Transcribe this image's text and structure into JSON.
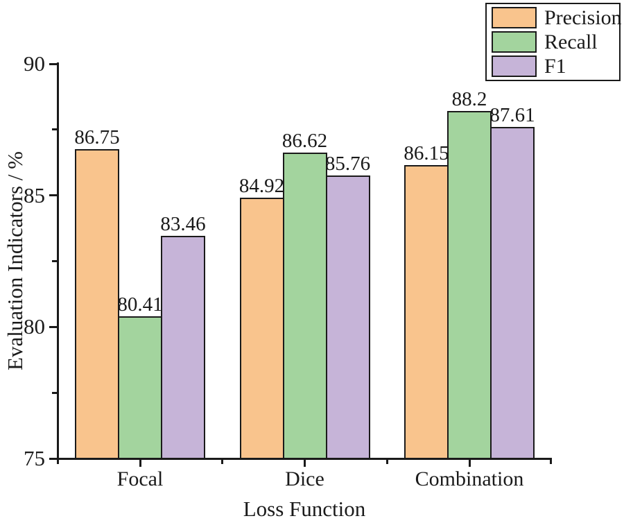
{
  "figure": {
    "background": "#ffffff",
    "ink_color": "#1a1a1a"
  },
  "chart_data": {
    "type": "bar",
    "title": "",
    "xlabel": "Loss Function",
    "ylabel": "Evaluation Indicators / %",
    "categories": [
      "Focal",
      "Dice",
      "Combination"
    ],
    "series": [
      {
        "name": "Precision",
        "color": "#F9C48D",
        "values": [
          86.75,
          84.92,
          86.15
        ]
      },
      {
        "name": "Recall",
        "color": "#A3D49E",
        "values": [
          80.41,
          86.62,
          88.2
        ]
      },
      {
        "name": "F1",
        "color": "#C6B4D8",
        "values": [
          83.46,
          85.76,
          87.61
        ]
      }
    ],
    "bar_labels": [
      [
        "86.75",
        "84.92",
        "86.15"
      ],
      [
        "80.41",
        "86.62",
        "88.2"
      ],
      [
        "83.46",
        "85.76",
        "87.61"
      ]
    ],
    "ylim": [
      75,
      90
    ],
    "yticks": [
      75,
      80,
      85,
      90
    ],
    "yticks_minor": [
      77.5,
      82.5,
      87.5
    ],
    "grid": false,
    "legend_position": "top-right",
    "bar_border_color": "#1a1a1a"
  }
}
